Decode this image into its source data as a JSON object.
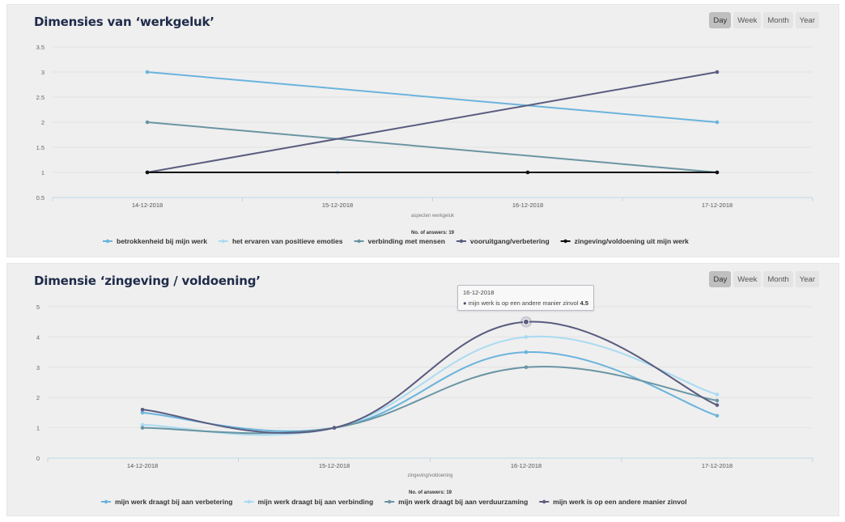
{
  "range_buttons": [
    "Day",
    "Week",
    "Month",
    "Year"
  ],
  "charts": [
    {
      "title": "Dimensies van ‘werkgeluk’",
      "active_range": "Day",
      "answers_label": "No. of answers: 19",
      "chart_data": {
        "type": "line",
        "title": "Dimensies van ‘werkgeluk’",
        "xlabel": "aspecten werkgeluk",
        "ylabel": "",
        "categories": [
          "14-12-2018",
          "15-12-2018",
          "16-12-2018",
          "17-12-2018"
        ],
        "ylim": [
          0.5,
          3.5
        ],
        "yticks": [
          0.5,
          1,
          1.5,
          2,
          2.5,
          3,
          3.5
        ],
        "ytick_labels": [
          "0.5",
          "1",
          "1.5",
          "2",
          "2.5",
          "3",
          "3.5"
        ],
        "grid": true,
        "smooth": false,
        "legend_position": "bottom",
        "series": [
          {
            "name": "betrokkenheid bij mijn werk",
            "color": "#6ab4dc",
            "values": [
              3,
              null,
              null,
              2
            ]
          },
          {
            "name": "het ervaren van positieve emoties",
            "color": "#a9dbf1",
            "values": [
              1,
              1,
              null,
              1
            ]
          },
          {
            "name": "verbinding met mensen",
            "color": "#6a95a3",
            "values": [
              2,
              null,
              null,
              1
            ]
          },
          {
            "name": "vooruitgang/verbetering",
            "color": "#5a5c80",
            "values": [
              1,
              null,
              null,
              3
            ]
          },
          {
            "name": "zingeving/voldoening uit mijn werk",
            "color": "#111111",
            "values": [
              1,
              null,
              1,
              1
            ]
          }
        ]
      }
    },
    {
      "title": "Dimensie ‘zingeving / voldoening’",
      "active_range": "Day",
      "answers_label": "No. of answers: 19",
      "tooltip": {
        "date": "16-12-2018",
        "series": "mijn werk is op een andere manier zinvol",
        "value": "4.5"
      },
      "chart_data": {
        "type": "line",
        "title": "Dimensie ‘zingeving / voldoening’",
        "xlabel": "zingeving/voldoening",
        "ylabel": "",
        "categories": [
          "14-12-2018",
          "15-12-2018",
          "16-12-2018",
          "17-12-2018"
        ],
        "ylim": [
          0,
          5
        ],
        "yticks": [
          0,
          1,
          2,
          3,
          4,
          5
        ],
        "ytick_labels": [
          "0",
          "1",
          "2",
          "3",
          "4",
          "5"
        ],
        "grid": true,
        "smooth": true,
        "legend_position": "bottom",
        "series": [
          {
            "name": "mijn werk draagt bij aan verbetering",
            "color": "#6ab4dc",
            "values": [
              1.5,
              1,
              3.5,
              1.4
            ]
          },
          {
            "name": "mijn werk draagt bij aan verbinding",
            "color": "#a9dbf1",
            "values": [
              1.1,
              1,
              4,
              2.1
            ]
          },
          {
            "name": "mijn werk draagt bij aan verduurzaming",
            "color": "#6a95a3",
            "values": [
              1,
              1,
              3,
              1.9
            ]
          },
          {
            "name": "mijn werk is op een andere manier zinvol",
            "color": "#5a5c80",
            "values": [
              1.6,
              1,
              4.5,
              1.75
            ]
          }
        ]
      }
    }
  ]
}
